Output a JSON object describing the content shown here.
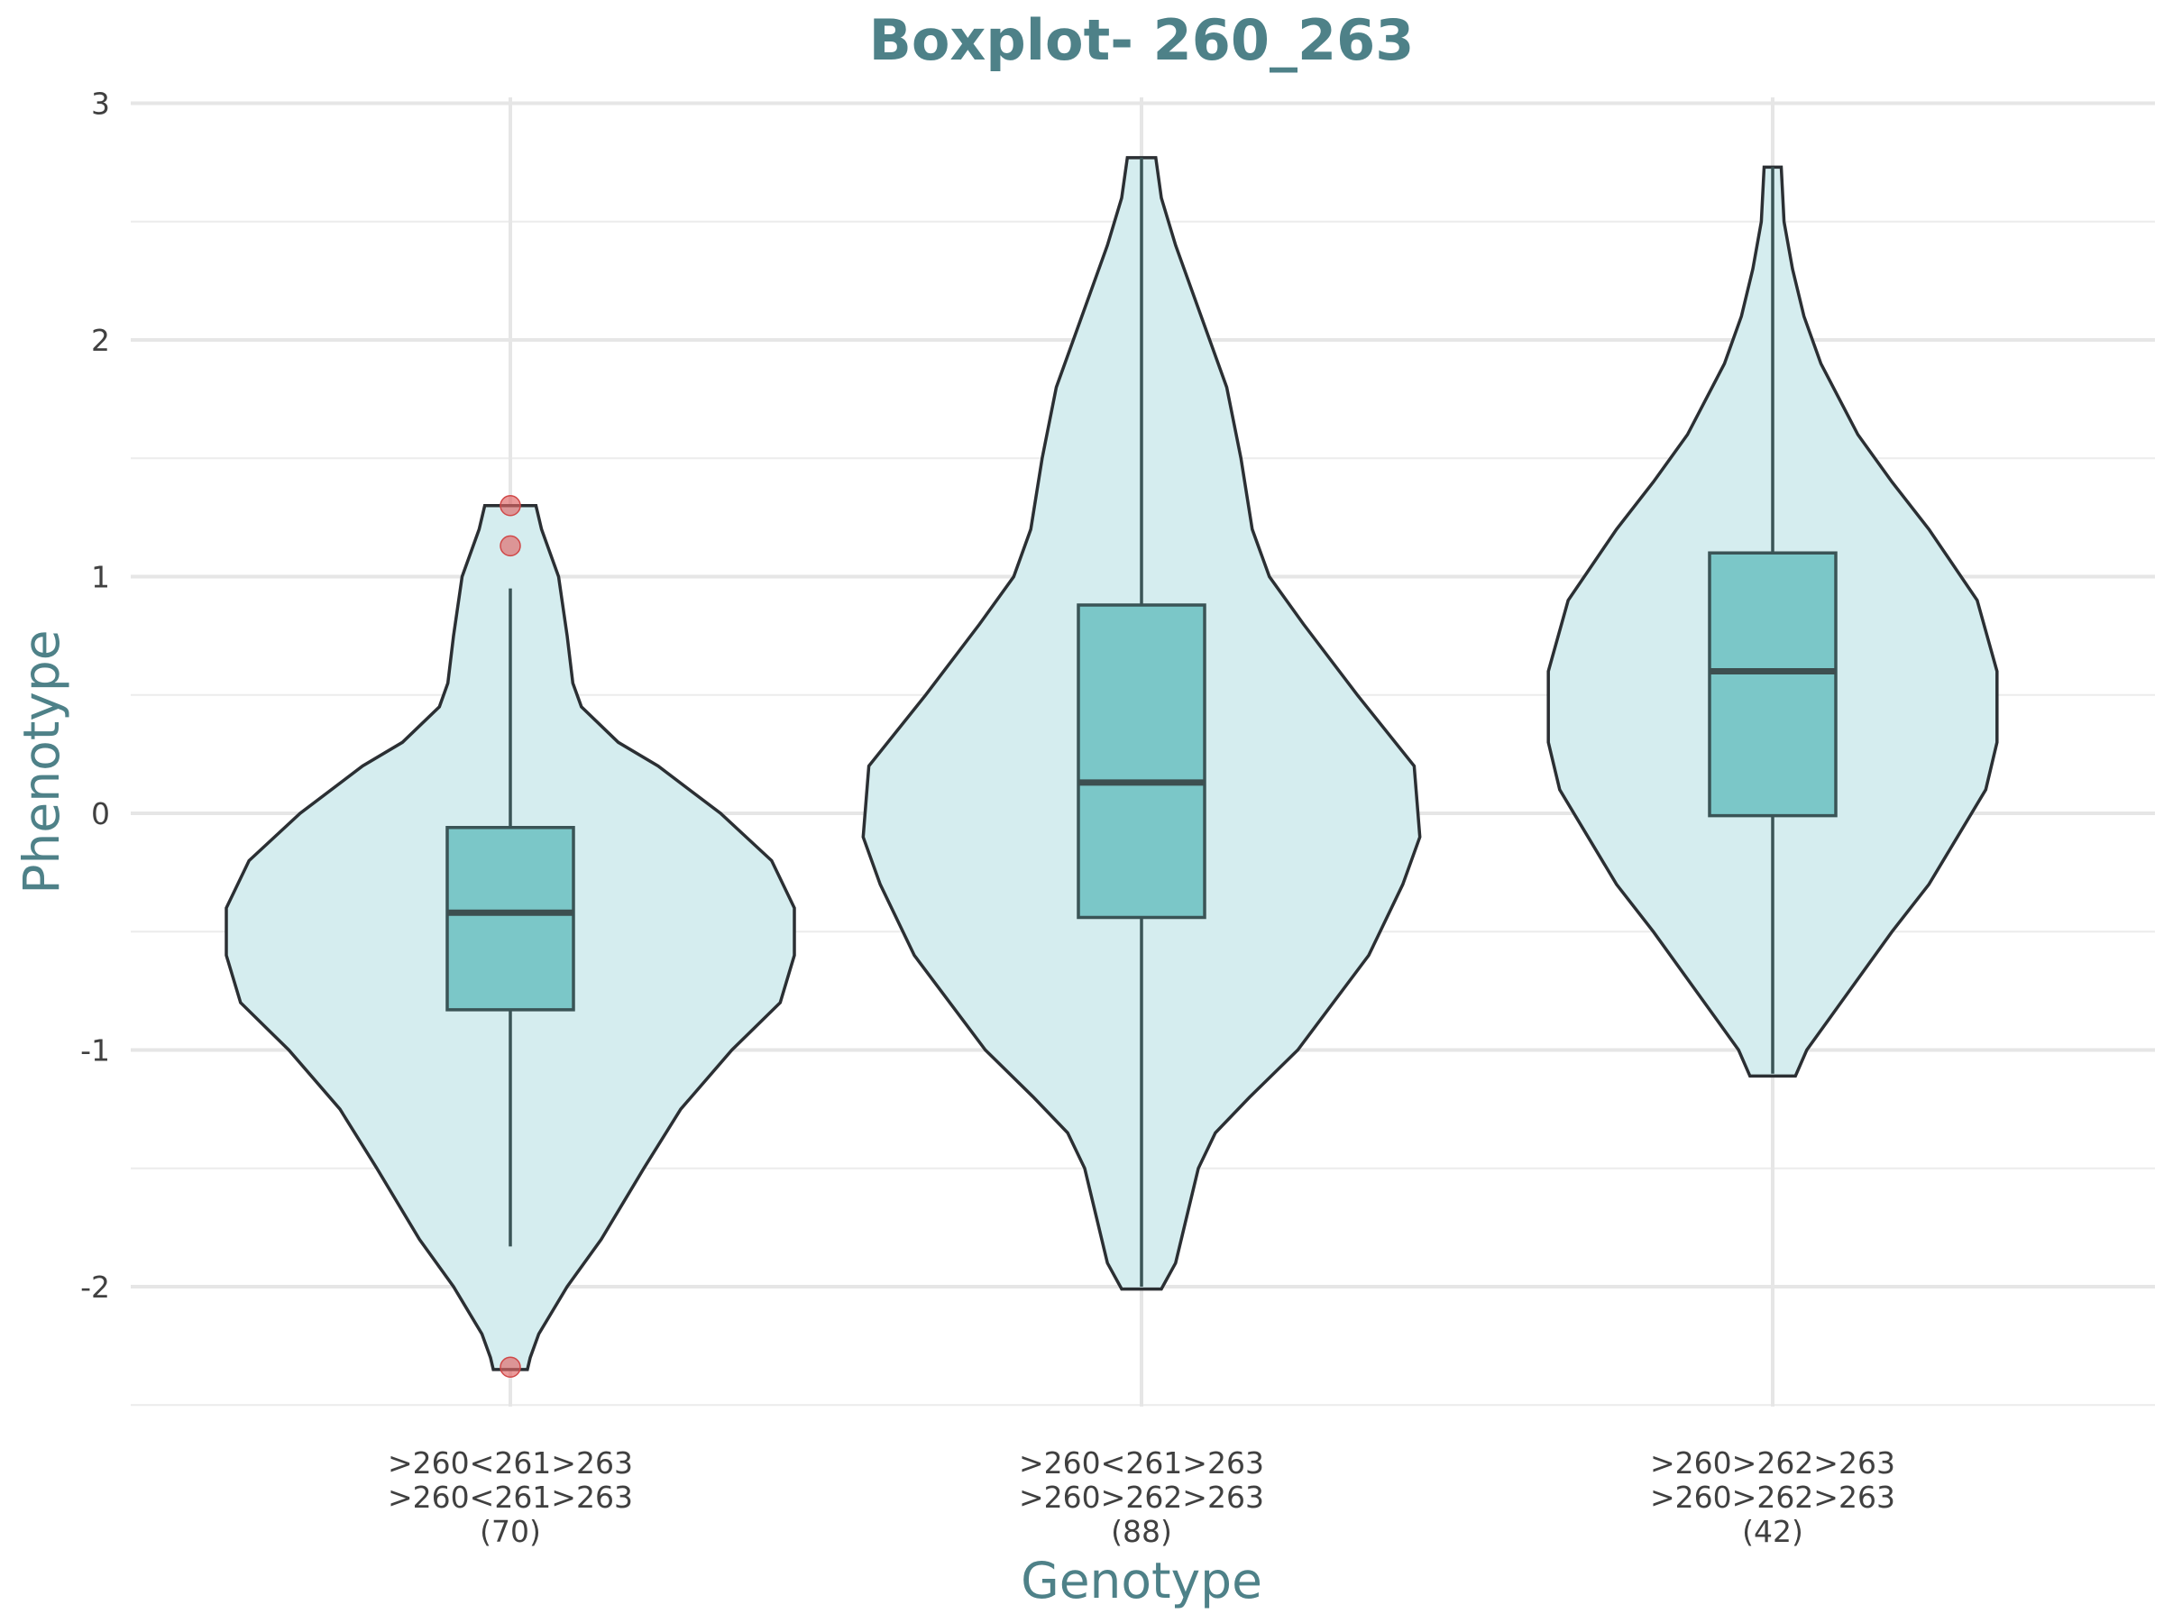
{
  "chart_data": {
    "type": "violin-box",
    "title": "Boxplot- 260_263",
    "xlabel": "Genotype",
    "ylabel": "Phenotype",
    "ylim": [
      -2.5,
      3.0
    ],
    "yticks": [
      3,
      2,
      1,
      0,
      -1,
      -2
    ],
    "ytick_labels": [
      "3",
      "2",
      "1",
      "0",
      "-1",
      "-2"
    ],
    "grid": true,
    "colors": {
      "violin_fill": "#d5edef",
      "box_fill": "#6bbfc1",
      "outlier": "#e06666",
      "title": "#4e8188"
    },
    "groups": [
      {
        "label_lines": [
          ">260<261>263",
          ">260<261>263",
          "(70)"
        ],
        "n": 70,
        "box": {
          "q1": -0.83,
          "median": -0.42,
          "q3": -0.06,
          "whisker_low": -1.83,
          "whisker_high": 0.95
        },
        "outliers": [
          1.3,
          1.13,
          -2.34
        ],
        "violin_range": [
          -2.35,
          1.3
        ],
        "density": [
          [
            -2.35,
            0.06
          ],
          [
            -2.3,
            0.07
          ],
          [
            -2.2,
            0.1
          ],
          [
            -2.0,
            0.2
          ],
          [
            -1.8,
            0.32
          ],
          [
            -1.5,
            0.47
          ],
          [
            -1.25,
            0.6
          ],
          [
            -1.0,
            0.78
          ],
          [
            -0.8,
            0.95
          ],
          [
            -0.6,
            1.0
          ],
          [
            -0.4,
            1.0
          ],
          [
            -0.2,
            0.92
          ],
          [
            0.0,
            0.74
          ],
          [
            0.2,
            0.52
          ],
          [
            0.3,
            0.38
          ],
          [
            0.45,
            0.25
          ],
          [
            0.55,
            0.22
          ],
          [
            0.75,
            0.2
          ],
          [
            1.0,
            0.17
          ],
          [
            1.2,
            0.11
          ],
          [
            1.3,
            0.09
          ]
        ]
      },
      {
        "label_lines": [
          ">260<261>263",
          ">260>262>263",
          "(88)"
        ],
        "n": 88,
        "box": {
          "q1": -0.44,
          "median": 0.13,
          "q3": 0.88,
          "whisker_low": -2.0,
          "whisker_high": 2.77
        },
        "outliers": [],
        "violin_range": [
          -2.01,
          2.77
        ],
        "density": [
          [
            -2.01,
            0.07
          ],
          [
            -1.9,
            0.12
          ],
          [
            -1.7,
            0.16
          ],
          [
            -1.5,
            0.2
          ],
          [
            -1.35,
            0.26
          ],
          [
            -1.2,
            0.38
          ],
          [
            -1.0,
            0.55
          ],
          [
            -0.6,
            0.8
          ],
          [
            -0.3,
            0.92
          ],
          [
            -0.1,
            0.98
          ],
          [
            0.2,
            0.96
          ],
          [
            0.5,
            0.76
          ],
          [
            0.8,
            0.57
          ],
          [
            1.0,
            0.45
          ],
          [
            1.2,
            0.39
          ],
          [
            1.5,
            0.35
          ],
          [
            1.8,
            0.3
          ],
          [
            2.0,
            0.24
          ],
          [
            2.2,
            0.18
          ],
          [
            2.4,
            0.12
          ],
          [
            2.6,
            0.07
          ],
          [
            2.77,
            0.05
          ]
        ]
      },
      {
        "label_lines": [
          ">260>262>263",
          ">260>262>263",
          "(42)"
        ],
        "n": 42,
        "box": {
          "q1": -0.01,
          "median": 0.6,
          "q3": 1.1,
          "whisker_low": -1.1,
          "whisker_high": 2.73
        },
        "outliers": [],
        "violin_range": [
          -1.11,
          2.73
        ],
        "density": [
          [
            -1.11,
            0.08
          ],
          [
            -1.0,
            0.12
          ],
          [
            -0.8,
            0.24
          ],
          [
            -0.5,
            0.42
          ],
          [
            -0.3,
            0.55
          ],
          [
            -0.1,
            0.65
          ],
          [
            0.1,
            0.75
          ],
          [
            0.3,
            0.79
          ],
          [
            0.6,
            0.79
          ],
          [
            0.9,
            0.72
          ],
          [
            1.2,
            0.55
          ],
          [
            1.4,
            0.42
          ],
          [
            1.6,
            0.3
          ],
          [
            1.9,
            0.17
          ],
          [
            2.1,
            0.11
          ],
          [
            2.3,
            0.07
          ],
          [
            2.5,
            0.04
          ],
          [
            2.73,
            0.03
          ]
        ]
      }
    ]
  }
}
